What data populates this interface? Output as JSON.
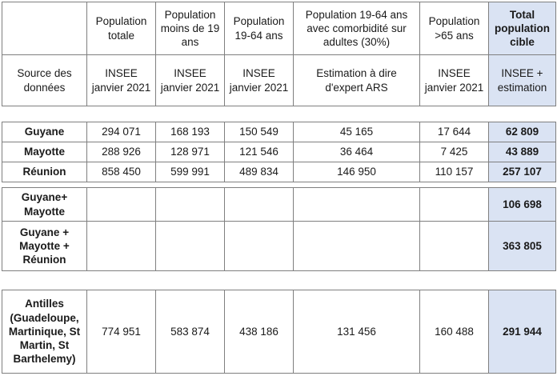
{
  "headers": {
    "col1": "Population totale",
    "col2": "Population moins de 19 ans",
    "col3": "Population 19-64 ans",
    "col4": "Population 19-64 ans avec comorbidité sur adultes  (30%)",
    "col5": "Population >65 ans",
    "col6": "Total population cible"
  },
  "source": {
    "label": "Source des données",
    "col1": "INSEE janvier 2021",
    "col2": "INSEE janvier 2021",
    "col3": "INSEE janvier 2021",
    "col4": "Estimation à dire d'expert ARS",
    "col5": "INSEE janvier 2021",
    "col6": "INSEE + estimation"
  },
  "rows": [
    {
      "name": "Guyane",
      "c1": "294 071",
      "c2": "168 193",
      "c3": "150 549",
      "c4": "45 165",
      "c5": "17 644",
      "total": "62 809"
    },
    {
      "name": "Mayotte",
      "c1": "288 926",
      "c2": "128 971",
      "c3": "121 546",
      "c4": "36 464",
      "c5": "7 425",
      "total": "43 889"
    },
    {
      "name": "Réunion",
      "c1": "858 450",
      "c2": "599 991",
      "c3": "489 834",
      "c4": "146 950",
      "c5": "110 157",
      "total": "257 107"
    }
  ],
  "combined": [
    {
      "name": "Guyane+ Mayotte",
      "total": "106 698"
    },
    {
      "name": "Guyane + Mayotte + Réunion",
      "total": "363 805"
    }
  ],
  "antilles": {
    "name": "Antilles (Guadeloupe, Martinique, St Martin, St Barthelemy)",
    "c1": "774 951",
    "c2": "583 874",
    "c3": "438 186",
    "c4": "131 456",
    "c5": "160 488",
    "total": "291 944"
  }
}
